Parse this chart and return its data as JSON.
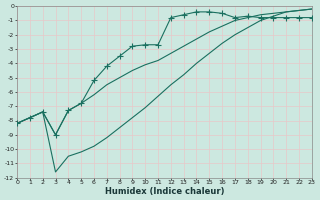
{
  "xlabel": "Humidex (Indice chaleur)",
  "bg_color": "#cce8e0",
  "grid_color": "#b8d8d0",
  "line_color": "#1a7060",
  "xlim": [
    0,
    23
  ],
  "ylim": [
    -12,
    0
  ],
  "upper_x": [
    0,
    1,
    2,
    3,
    4,
    5,
    6,
    7,
    8,
    9,
    10,
    11,
    12,
    13,
    14,
    15,
    16,
    17,
    18,
    19,
    20,
    21,
    22,
    23
  ],
  "upper_y": [
    -8.2,
    -7.8,
    -7.4,
    -9.0,
    -7.3,
    -6.8,
    -5.2,
    -4.2,
    -3.5,
    -2.8,
    -2.7,
    -2.7,
    -0.8,
    -0.6,
    -0.4,
    -0.4,
    -0.5,
    -0.8,
    -0.7,
    -0.8,
    -0.8,
    -0.8,
    -0.8,
    -0.8
  ],
  "middle_x": [
    0,
    1,
    2,
    3,
    4,
    5,
    6,
    7,
    8,
    9,
    10,
    11,
    12,
    13,
    14,
    15,
    16,
    17,
    18,
    19,
    20,
    21,
    22,
    23
  ],
  "middle_y": [
    -8.2,
    -7.8,
    -7.4,
    -9.0,
    -7.3,
    -6.8,
    -6.2,
    -5.5,
    -5.0,
    -4.5,
    -4.1,
    -3.8,
    -3.3,
    -2.8,
    -2.3,
    -1.8,
    -1.4,
    -1.0,
    -0.8,
    -0.6,
    -0.5,
    -0.4,
    -0.3,
    -0.2
  ],
  "lower_x": [
    0,
    1,
    2,
    3,
    4,
    5,
    6,
    7,
    8,
    9,
    10,
    11,
    12,
    13,
    14,
    15,
    16,
    17,
    18,
    19,
    20,
    21,
    22,
    23
  ],
  "lower_y": [
    -8.2,
    -7.8,
    -7.4,
    -11.6,
    -10.5,
    -10.2,
    -9.8,
    -9.2,
    -8.5,
    -7.8,
    -7.1,
    -6.3,
    -5.5,
    -4.8,
    -4.0,
    -3.3,
    -2.6,
    -2.0,
    -1.5,
    -1.0,
    -0.7,
    -0.4,
    -0.3,
    -0.2
  ]
}
